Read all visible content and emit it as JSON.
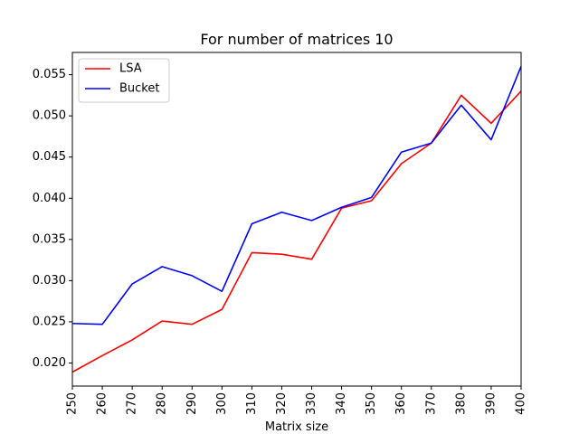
{
  "chart_data": {
    "type": "line",
    "title": "For number of matrices 10",
    "xlabel": "Matrix size",
    "ylabel": "",
    "x": [
      250,
      260,
      270,
      280,
      290,
      300,
      310,
      320,
      330,
      340,
      350,
      360,
      370,
      380,
      390,
      400
    ],
    "xlim": [
      250,
      400
    ],
    "ylim": [
      0.0172,
      0.0577
    ],
    "yticks": [
      0.02,
      0.025,
      0.03,
      0.035,
      0.04,
      0.045,
      0.05,
      0.055
    ],
    "ytick_labels": [
      "0.020",
      "0.025",
      "0.030",
      "0.035",
      "0.040",
      "0.045",
      "0.050",
      "0.055"
    ],
    "xtick_labels": [
      "250",
      "260",
      "270",
      "280",
      "290",
      "300",
      "310",
      "320",
      "330",
      "340",
      "350",
      "360",
      "370",
      "380",
      "390",
      "400"
    ],
    "grid": false,
    "legend_position": "upper-left",
    "series": [
      {
        "name": "LSA",
        "color": "#ff0000",
        "values": [
          0.0189,
          0.0209,
          0.0228,
          0.0251,
          0.0247,
          0.0265,
          0.0334,
          0.0332,
          0.0326,
          0.0388,
          0.0397,
          0.0442,
          0.0467,
          0.0525,
          0.0491,
          0.053
        ]
      },
      {
        "name": "Bucket",
        "color": "#0000ff",
        "values": [
          0.0248,
          0.0247,
          0.0296,
          0.0317,
          0.0306,
          0.0287,
          0.0369,
          0.0383,
          0.0373,
          0.0389,
          0.0401,
          0.0456,
          0.0467,
          0.0513,
          0.0471,
          0.056
        ]
      }
    ]
  }
}
